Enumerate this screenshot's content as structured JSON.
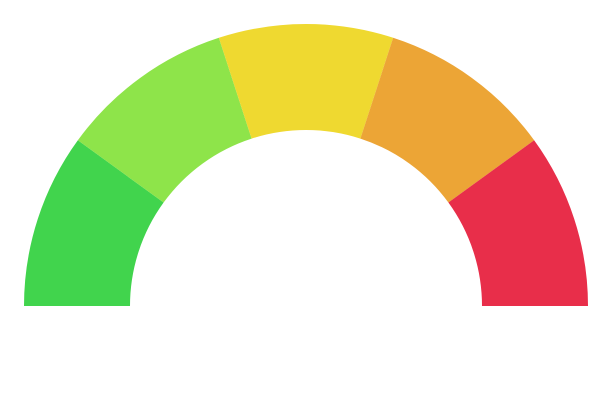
{
  "gauge": {
    "type": "semicircle-gauge",
    "segments": [
      {
        "name": "segment-1",
        "color": "#41d44d"
      },
      {
        "name": "segment-2",
        "color": "#8ee44a"
      },
      {
        "name": "segment-3",
        "color": "#efd930"
      },
      {
        "name": "segment-4",
        "color": "#eca536"
      },
      {
        "name": "segment-5",
        "color": "#e82e4a"
      }
    ]
  }
}
